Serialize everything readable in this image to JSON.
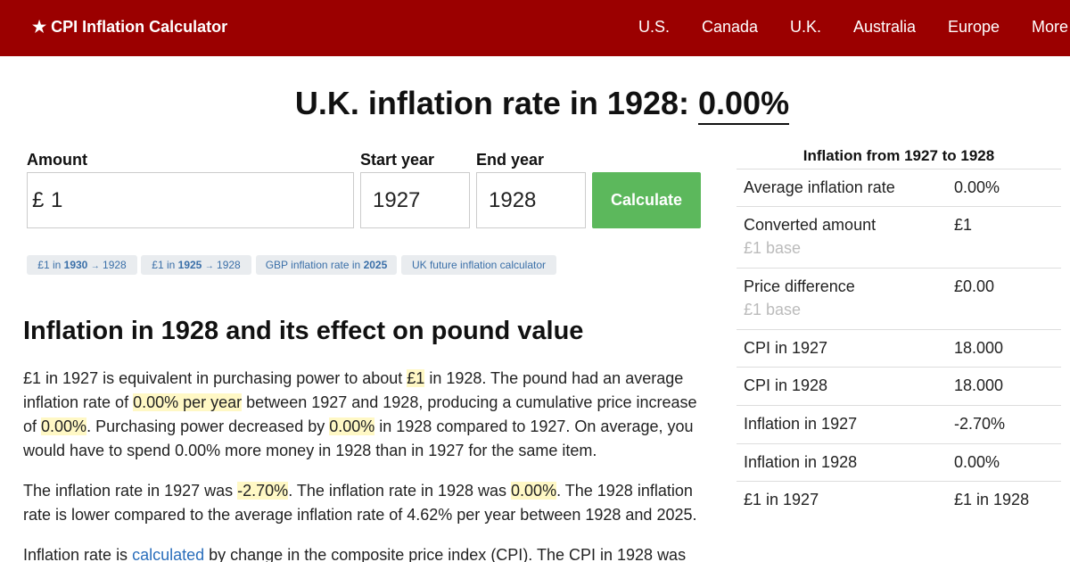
{
  "header": {
    "brand": "★ CPI Inflation Calculator",
    "nav": [
      "U.S.",
      "Canada",
      "U.K.",
      "Australia",
      "Europe",
      "More"
    ]
  },
  "title": {
    "prefix": "U.K. inflation rate in 1928:",
    "rate": "0.00%"
  },
  "form": {
    "amount_label": "Amount",
    "start_label": "Start year",
    "end_label": "End year",
    "currency": "£",
    "amount_value": "1",
    "start_value": "1927",
    "end_value": "1928",
    "calculate_label": "Calculate"
  },
  "chips": [
    {
      "pre": "£1 in",
      "bold": "1930",
      "arrow": "→",
      "post": "1928"
    },
    {
      "pre": "£1 in",
      "bold": "1925",
      "arrow": "→",
      "post": "1928"
    },
    {
      "pre": "GBP inflation rate in",
      "bold": "2025"
    },
    {
      "pre": "UK future inflation calculator"
    }
  ],
  "article": {
    "heading": "Inflation in 1928 and its effect on pound value",
    "p1": {
      "t1": "£1 in 1927 is equivalent in purchasing power to about ",
      "h1": "£1",
      "t2": " in 1928. The pound had an average inflation rate of ",
      "h2": "0.00% per year",
      "t3": " between 1927 and 1928, producing a cumulative price increase of ",
      "h3": "0.00%",
      "t4": ". Purchasing power decreased by ",
      "h4": "0.00%",
      "t5": " in 1928 compared to 1927. On average, you would have to spend 0.00% more money in 1928 than in 1927 for the same item."
    },
    "p2": {
      "t1": "The inflation rate in 1927 was ",
      "h1": "-2.70%",
      "t2": ". The inflation rate in 1928 was ",
      "h2": "0.00%",
      "t3": ". The 1928 inflation rate is lower compared to the average inflation rate of 4.62% per year between 1928 and 2025."
    },
    "p3": {
      "t1": "Inflation rate is ",
      "link": "calculated",
      "t2": " by change in the composite price index (CPI). The CPI in 1928 was"
    }
  },
  "sidebar": {
    "title": "Inflation from 1927 to 1928",
    "rows": [
      {
        "label": "Average inflation rate",
        "value": "0.00%"
      },
      {
        "label": "Converted amount",
        "value": "£1",
        "sub": "£1 base"
      },
      {
        "label": "Price difference",
        "value": "£0.00",
        "sub": "£1 base"
      },
      {
        "label": "CPI in 1927",
        "value": "18.000"
      },
      {
        "label": "CPI in 1928",
        "value": "18.000"
      },
      {
        "label": "Inflation in 1927",
        "value": "-2.70%"
      },
      {
        "label": "Inflation in 1928",
        "value": "0.00%"
      },
      {
        "label": "£1 in 1927",
        "value": "£1 in 1928"
      }
    ]
  }
}
